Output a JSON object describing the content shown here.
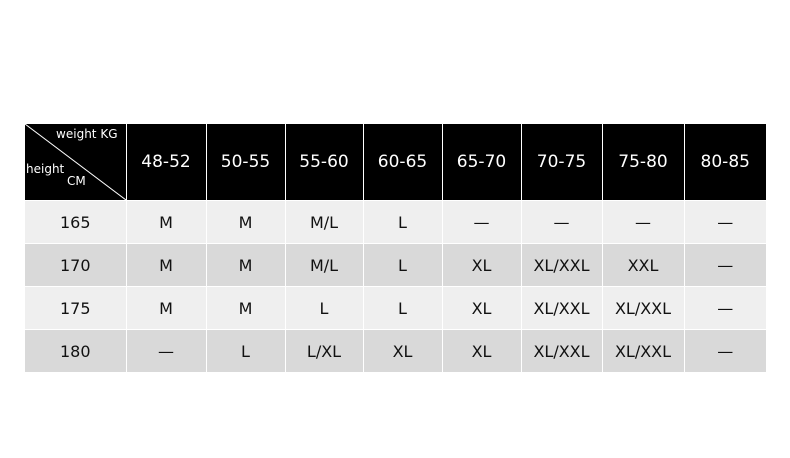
{
  "table": {
    "corner": {
      "weight": "weight KG",
      "height": "height",
      "unit": "CM"
    },
    "columns": [
      "48-52",
      "50-55",
      "55-60",
      "60-65",
      "65-70",
      "70-75",
      "75-80",
      "80-85"
    ],
    "rows": [
      {
        "height": "165",
        "sizes": [
          "M",
          "M",
          "M/L",
          "L",
          "—",
          "—",
          "—",
          "—"
        ]
      },
      {
        "height": "170",
        "sizes": [
          "M",
          "M",
          "M/L",
          "L",
          "XL",
          "XL/XXL",
          "XXL",
          "—"
        ]
      },
      {
        "height": "175",
        "sizes": [
          "M",
          "M",
          "L",
          "L",
          "XL",
          "XL/XXL",
          "XL/XXL",
          "—"
        ]
      },
      {
        "height": "180",
        "sizes": [
          "—",
          "L",
          "L/XL",
          "XL",
          "XL",
          "XL/XXL",
          "XL/XXL",
          "—"
        ]
      }
    ]
  }
}
